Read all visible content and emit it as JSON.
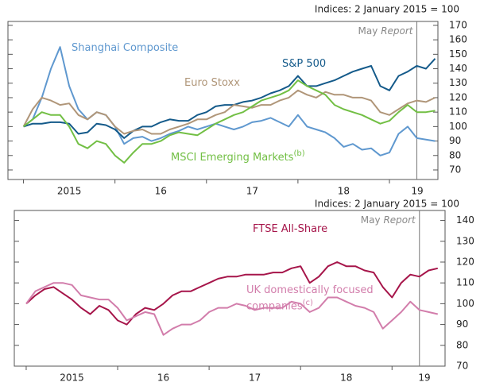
{
  "chart_data": [
    {
      "type": "line",
      "ylabel": "Indices: 2 January 2015 = 100",
      "annotation": "May",
      "annotation_italic": "Report",
      "report_line": 2019.3,
      "xlim": [
        2014.83,
        2019.53
      ],
      "ylim": [
        63.4,
        172.7
      ],
      "xticks": [
        {
          "value": 2015,
          "label": "2015"
        },
        {
          "value": 2016,
          "label": "16"
        },
        {
          "value": 2017,
          "label": "17"
        },
        {
          "value": 2018,
          "label": "18"
        },
        {
          "value": 2019,
          "label": "19"
        }
      ],
      "yticks": [
        70,
        80,
        90,
        100,
        110,
        120,
        130,
        140,
        150,
        160,
        170
      ],
      "x": [
        2015.0,
        2015.1,
        2015.2,
        2015.3,
        2015.4,
        2015.5,
        2015.6,
        2015.7,
        2015.8,
        2015.9,
        2016.0,
        2016.1,
        2016.2,
        2016.3,
        2016.4,
        2016.5,
        2016.6,
        2016.7,
        2016.8,
        2016.9,
        2017.0,
        2017.1,
        2017.2,
        2017.3,
        2017.4,
        2017.5,
        2017.6,
        2017.7,
        2017.8,
        2017.9,
        2018.0,
        2018.1,
        2018.2,
        2018.3,
        2018.4,
        2018.5,
        2018.6,
        2018.7,
        2018.8,
        2018.9,
        2019.0,
        2019.1,
        2019.2,
        2019.3,
        2019.4,
        2019.5
      ],
      "series": [
        {
          "name": "Shanghai Composite",
          "color": "#5f98cf",
          "values": [
            100,
            105,
            120,
            140,
            155,
            128,
            112,
            105,
            110,
            108,
            100,
            88,
            92,
            93,
            90,
            92,
            95,
            97,
            100,
            98,
            100,
            102,
            100,
            98,
            100,
            103,
            104,
            106,
            103,
            100,
            108,
            100,
            98,
            96,
            92,
            86,
            88,
            84,
            85,
            80,
            82,
            95,
            100,
            92,
            91,
            90
          ]
        },
        {
          "name": "S&P 500",
          "color": "#145a8a",
          "values": [
            100,
            102,
            102,
            103,
            103,
            102,
            95,
            96,
            102,
            101,
            98,
            92,
            97,
            100,
            100,
            103,
            105,
            104,
            104,
            108,
            110,
            114,
            115,
            115,
            117,
            118,
            120,
            123,
            125,
            128,
            135,
            128,
            128,
            130,
            132,
            135,
            138,
            140,
            142,
            128,
            125,
            135,
            138,
            142,
            140,
            147
          ]
        },
        {
          "name": "Euro Stoxx",
          "color": "#b09679",
          "values": [
            100,
            112,
            120,
            118,
            115,
            116,
            108,
            105,
            110,
            108,
            100,
            95,
            97,
            98,
            95,
            95,
            98,
            100,
            102,
            105,
            105,
            108,
            110,
            115,
            114,
            113,
            115,
            115,
            118,
            120,
            125,
            122,
            120,
            124,
            122,
            122,
            120,
            120,
            118,
            110,
            108,
            112,
            116,
            118,
            117,
            120
          ]
        },
        {
          "name": "MSCI Emerging Markets",
          "note": "(b)",
          "color": "#72bf44",
          "values": [
            100,
            105,
            110,
            108,
            108,
            100,
            88,
            85,
            90,
            88,
            80,
            75,
            82,
            88,
            88,
            90,
            94,
            96,
            95,
            94,
            98,
            102,
            105,
            108,
            110,
            114,
            118,
            120,
            122,
            125,
            132,
            128,
            125,
            122,
            115,
            112,
            110,
            108,
            105,
            102,
            104,
            110,
            115,
            110,
            110,
            111
          ]
        }
      ]
    },
    {
      "type": "line",
      "ylabel": "Indices: 2 January 2015 = 100",
      "annotation": "May",
      "annotation_italic": "Report",
      "report_line": 2019.3,
      "xlim": [
        2014.87,
        2019.58
      ],
      "ylim": [
        70,
        144.8
      ],
      "xticks": [
        {
          "value": 2015,
          "label": "2015"
        },
        {
          "value": 2016,
          "label": "16"
        },
        {
          "value": 2017,
          "label": "17"
        },
        {
          "value": 2018,
          "label": "18"
        },
        {
          "value": 2019,
          "label": "19"
        }
      ],
      "yticks": [
        70,
        80,
        90,
        100,
        110,
        120,
        130,
        140
      ],
      "x": [
        2015.0,
        2015.1,
        2015.2,
        2015.3,
        2015.4,
        2015.5,
        2015.6,
        2015.7,
        2015.8,
        2015.9,
        2016.0,
        2016.1,
        2016.2,
        2016.3,
        2016.4,
        2016.5,
        2016.6,
        2016.7,
        2016.8,
        2016.9,
        2017.0,
        2017.1,
        2017.2,
        2017.3,
        2017.4,
        2017.5,
        2017.6,
        2017.7,
        2017.8,
        2017.9,
        2018.0,
        2018.1,
        2018.2,
        2018.3,
        2018.4,
        2018.5,
        2018.6,
        2018.7,
        2018.8,
        2018.9,
        2019.0,
        2019.1,
        2019.2,
        2019.3,
        2019.4,
        2019.5
      ],
      "series": [
        {
          "name": "FTSE All-Share",
          "color": "#a6154a",
          "values": [
            100,
            104,
            107,
            108,
            105,
            102,
            98,
            95,
            99,
            97,
            92,
            90,
            95,
            98,
            97,
            100,
            104,
            106,
            106,
            108,
            110,
            112,
            113,
            113,
            114,
            114,
            114,
            115,
            115,
            117,
            118,
            110,
            113,
            118,
            120,
            118,
            118,
            116,
            115,
            108,
            103,
            110,
            114,
            113,
            116,
            117
          ]
        },
        {
          "name": "UK domestically focused companies",
          "note": "(c)",
          "color": "#d27dab",
          "values": [
            100,
            106,
            108,
            110,
            110,
            109,
            104,
            103,
            102,
            102,
            98,
            92,
            94,
            96,
            95,
            85,
            88,
            90,
            90,
            92,
            96,
            98,
            98,
            100,
            99,
            97,
            98,
            98,
            98,
            101,
            100,
            96,
            98,
            103,
            103,
            101,
            99,
            98,
            96,
            88,
            92,
            96,
            101,
            97,
            96,
            95
          ]
        }
      ]
    }
  ]
}
